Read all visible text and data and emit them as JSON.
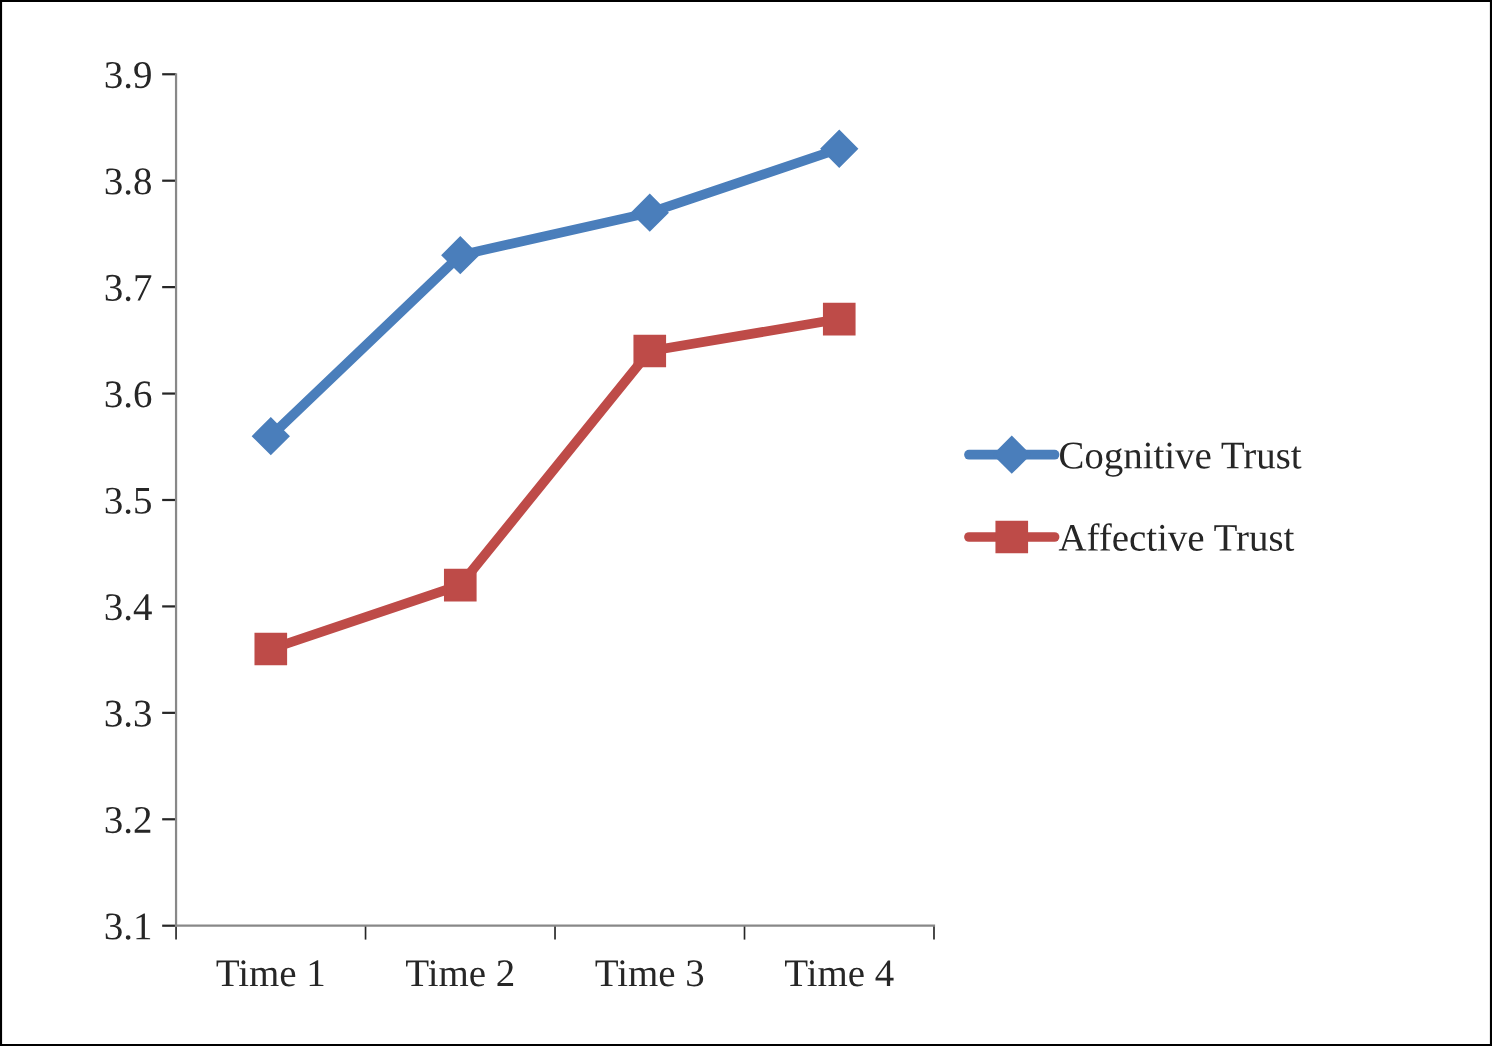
{
  "chart_data": {
    "type": "line",
    "categories": [
      "Time 1",
      "Time 2",
      "Time 3",
      "Time 4"
    ],
    "series": [
      {
        "name": "Cognitive Trust",
        "color": "#4a7ebb",
        "marker": "diamond",
        "values": [
          3.56,
          3.73,
          3.77,
          3.83
        ]
      },
      {
        "name": "Affective Trust",
        "color": "#be4b48",
        "marker": "square",
        "values": [
          3.36,
          3.42,
          3.64,
          3.67
        ]
      }
    ],
    "ylim": [
      3.1,
      3.9
    ],
    "yticks": [
      3.1,
      3.2,
      3.3,
      3.4,
      3.5,
      3.6,
      3.7,
      3.8,
      3.9
    ],
    "grid": false,
    "legend": "right",
    "line_style": "solid"
  }
}
